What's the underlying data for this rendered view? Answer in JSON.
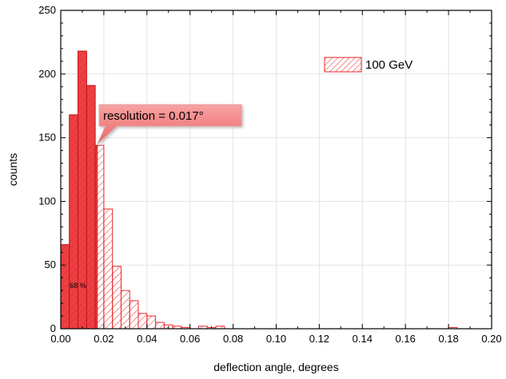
{
  "chart_data": {
    "type": "bar",
    "title": "",
    "xlabel": "deflection angle, degrees",
    "ylabel": "counts",
    "xlim": [
      0.0,
      0.2
    ],
    "ylim": [
      0,
      250
    ],
    "grid": true,
    "legend_position": "top-right",
    "x_ticks": [
      "0.00",
      "0.02",
      "0.04",
      "0.06",
      "0.08",
      "0.10",
      "0.12",
      "0.14",
      "0.16",
      "0.18",
      "0.20"
    ],
    "y_ticks": [
      "0",
      "50",
      "100",
      "150",
      "200",
      "250"
    ],
    "bin_width": 0.004,
    "series": [
      {
        "name": "100 GeV",
        "pattern": "diagonal-hatch",
        "color": "#e8262a",
        "bins": [
          {
            "x": 0.0,
            "count": 66
          },
          {
            "x": 0.004,
            "count": 168
          },
          {
            "x": 0.008,
            "count": 218
          },
          {
            "x": 0.012,
            "count": 191
          },
          {
            "x": 0.016,
            "count": 144
          },
          {
            "x": 0.02,
            "count": 94
          },
          {
            "x": 0.024,
            "count": 49
          },
          {
            "x": 0.028,
            "count": 30
          },
          {
            "x": 0.032,
            "count": 22
          },
          {
            "x": 0.036,
            "count": 12
          },
          {
            "x": 0.04,
            "count": 10
          },
          {
            "x": 0.044,
            "count": 5
          },
          {
            "x": 0.048,
            "count": 3
          },
          {
            "x": 0.052,
            "count": 2
          },
          {
            "x": 0.056,
            "count": 1
          },
          {
            "x": 0.064,
            "count": 2
          },
          {
            "x": 0.068,
            "count": 1
          },
          {
            "x": 0.072,
            "count": 2
          },
          {
            "x": 0.18,
            "count": 1
          }
        ]
      }
    ],
    "filled_region": {
      "x_start": 0.0,
      "x_end": 0.017,
      "label": "68 %"
    },
    "annotations": [
      {
        "text": "resolution = 0.017°",
        "x": 0.017,
        "y": 145
      }
    ]
  }
}
